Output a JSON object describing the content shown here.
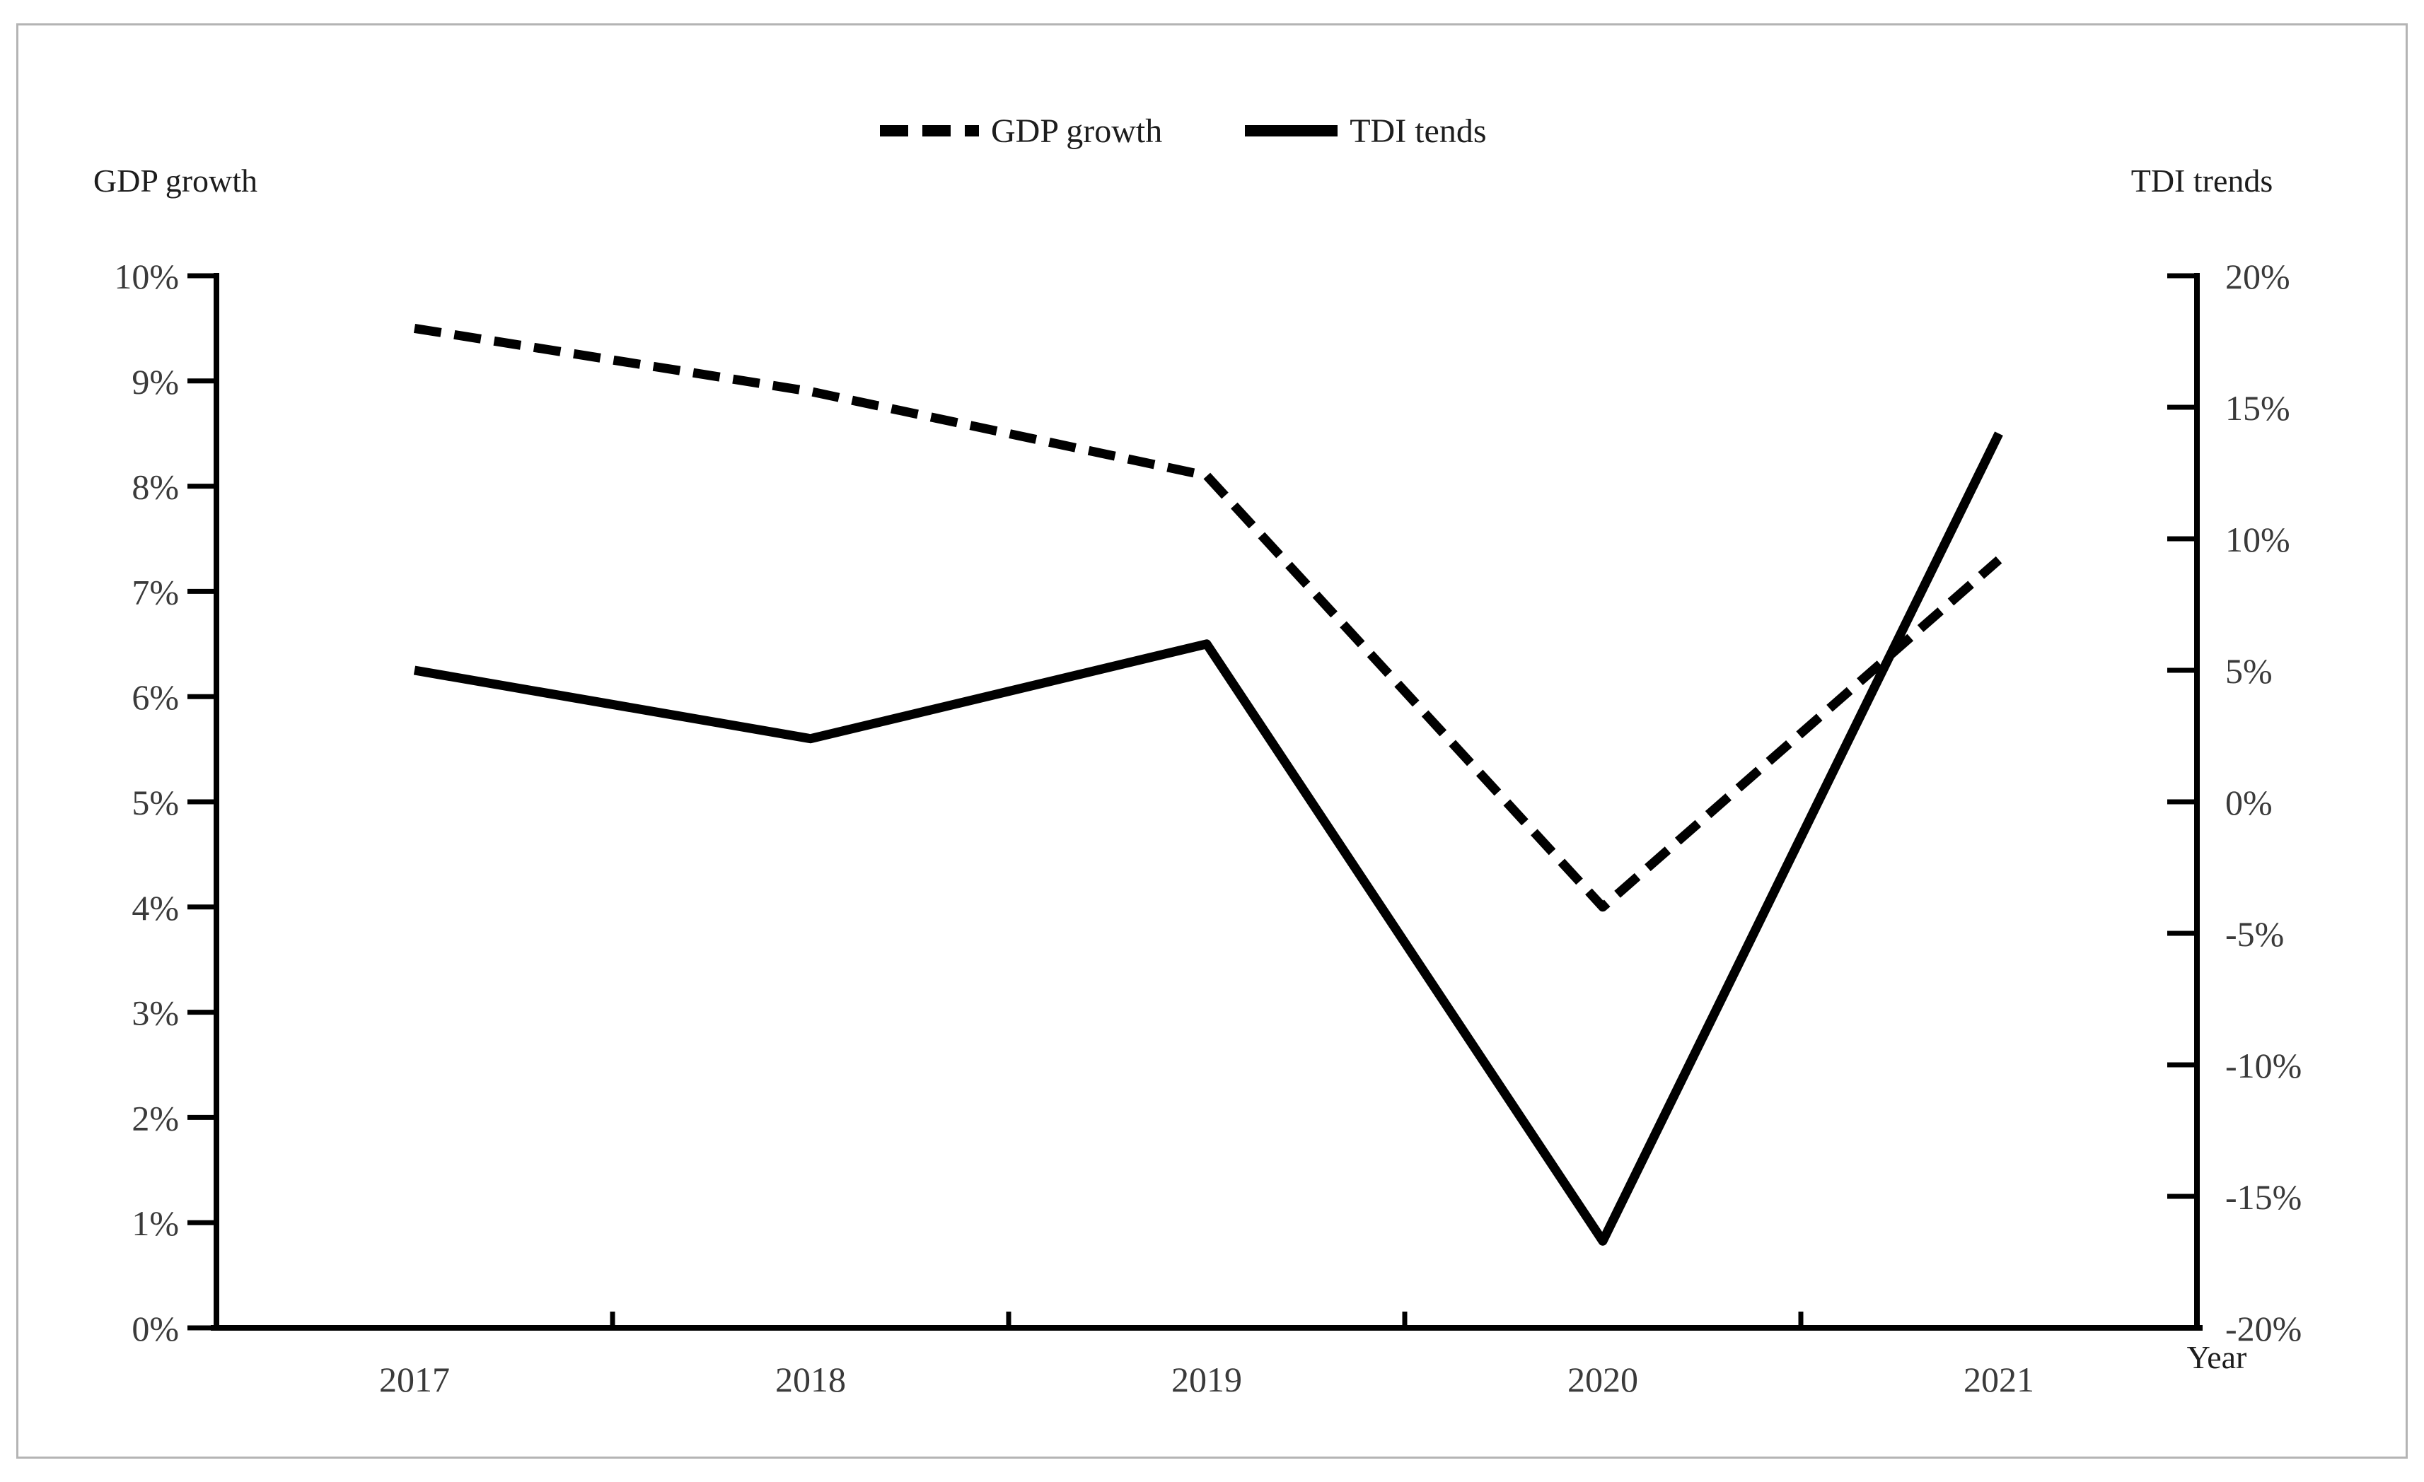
{
  "titles": {
    "left_axis": "GDP growth",
    "right_axis": "TDI trends",
    "x_axis": "Year"
  },
  "legend": {
    "position": "top-center",
    "items": [
      {
        "label": "GDP growth",
        "line_style": "dashed",
        "color": "#000000"
      },
      {
        "label": "TDI tends",
        "line_style": "solid",
        "color": "#000000"
      }
    ]
  },
  "frame": {
    "border_color": "#b4b4b4",
    "background": "#ffffff"
  },
  "chart_data": {
    "type": "line",
    "grid": false,
    "legend_position": "top-center",
    "categories": [
      "2017",
      "2018",
      "2019",
      "2020",
      "2021"
    ],
    "series": [
      {
        "name": "GDP growth",
        "axis": "left",
        "line_style": "dashed",
        "color": "#000000",
        "values": [
          9.5,
          8.9,
          8.1,
          4.0,
          7.3
        ]
      },
      {
        "name": "TDI tends",
        "axis": "right",
        "line_style": "solid",
        "color": "#000000",
        "values": [
          5.0,
          2.4,
          6.0,
          -16.7,
          14.0
        ]
      }
    ],
    "left_axis": {
      "title": "GDP growth",
      "min": 0,
      "max": 10,
      "ticks": [
        {
          "v": 10,
          "label": "10%"
        },
        {
          "v": 9,
          "label": "9%"
        },
        {
          "v": 8,
          "label": "8%"
        },
        {
          "v": 7,
          "label": "7%"
        },
        {
          "v": 6,
          "label": "6%"
        },
        {
          "v": 5,
          "label": "5%"
        },
        {
          "v": 4,
          "label": "4%"
        },
        {
          "v": 3,
          "label": "3%"
        },
        {
          "v": 2,
          "label": "2%"
        },
        {
          "v": 1,
          "label": "1%"
        },
        {
          "v": 0,
          "label": "0%"
        }
      ]
    },
    "right_axis": {
      "title": "TDI trends",
      "min": -20,
      "max": 20,
      "ticks": [
        {
          "v": 20,
          "label": "20%"
        },
        {
          "v": 15,
          "label": "15%"
        },
        {
          "v": 10,
          "label": "10%"
        },
        {
          "v": 5,
          "label": "5%"
        },
        {
          "v": 0,
          "label": "0%"
        },
        {
          "v": -5,
          "label": "-5%"
        },
        {
          "v": -10,
          "label": "-10%"
        },
        {
          "v": -15,
          "label": "-15%"
        },
        {
          "v": -20,
          "label": "-20%"
        }
      ]
    },
    "x_axis": {
      "title": "Year",
      "categories": [
        "2017",
        "2018",
        "2019",
        "2020",
        "2021"
      ]
    }
  }
}
